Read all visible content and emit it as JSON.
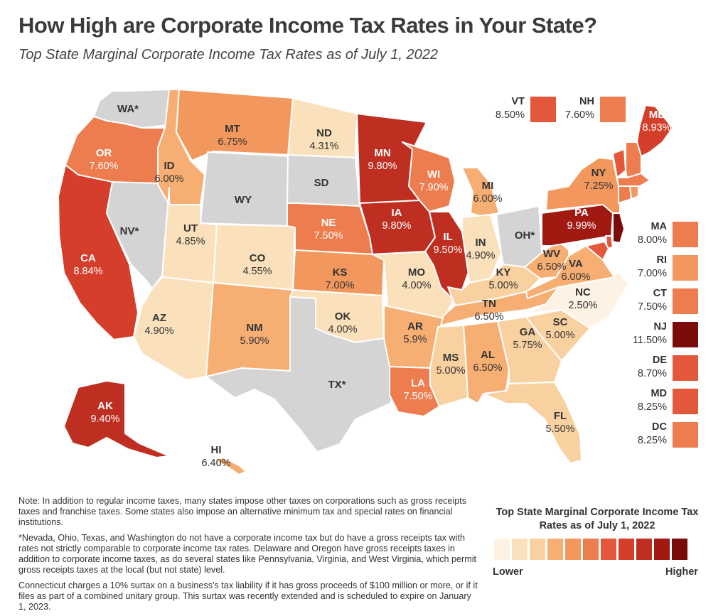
{
  "title": "How High are Corporate Income Tax Rates in Your State?",
  "subtitle": "Top State Marginal Corporate Income Tax Rates as of July 1, 2022",
  "colors": {
    "none": "#d4d4d4",
    "c1": "#fdf2e3",
    "c2": "#fbe0bc",
    "c3": "#f9d1a0",
    "c4": "#f6ae72",
    "c5": "#f2985e",
    "c6": "#ed7c4e",
    "c7": "#e3573b",
    "c8": "#d43e2a",
    "c9": "#be2f22",
    "c10": "#a01a12",
    "c11": "#7a0d0b"
  },
  "states": {
    "WA": {
      "code": "WA*",
      "rate": "",
      "color": "none"
    },
    "OR": {
      "code": "OR",
      "rate": "7.60%",
      "color": "c6"
    },
    "CA": {
      "code": "CA",
      "rate": "8.84%",
      "color": "c8"
    },
    "NV": {
      "code": "NV*",
      "rate": "",
      "color": "none"
    },
    "ID": {
      "code": "ID",
      "rate": "6.00%",
      "color": "c4"
    },
    "MT": {
      "code": "MT",
      "rate": "6.75%",
      "color": "c5"
    },
    "WY": {
      "code": "WY",
      "rate": "",
      "color": "none"
    },
    "UT": {
      "code": "UT",
      "rate": "4.85%",
      "color": "c2"
    },
    "AZ": {
      "code": "AZ",
      "rate": "4.90%",
      "color": "c2"
    },
    "CO": {
      "code": "CO",
      "rate": "4.55%",
      "color": "c2"
    },
    "NM": {
      "code": "NM",
      "rate": "5.90%",
      "color": "c4"
    },
    "ND": {
      "code": "ND",
      "rate": "4.31%",
      "color": "c2"
    },
    "SD": {
      "code": "SD",
      "rate": "",
      "color": "none"
    },
    "NE": {
      "code": "NE",
      "rate": "7.50%",
      "color": "c6"
    },
    "KS": {
      "code": "KS",
      "rate": "7.00%",
      "color": "c5"
    },
    "OK": {
      "code": "OK",
      "rate": "4.00%",
      "color": "c2"
    },
    "TX": {
      "code": "TX*",
      "rate": "",
      "color": "none"
    },
    "MN": {
      "code": "MN",
      "rate": "9.80%",
      "color": "c9"
    },
    "IA": {
      "code": "IA",
      "rate": "9.80%",
      "color": "c9"
    },
    "MO": {
      "code": "MO",
      "rate": "4.00%",
      "color": "c2"
    },
    "AR": {
      "code": "AR",
      "rate": "5.9%",
      "color": "c4"
    },
    "LA": {
      "code": "LA",
      "rate": "7.50%",
      "color": "c6"
    },
    "WI": {
      "code": "WI",
      "rate": "7.90%",
      "color": "c6"
    },
    "IL": {
      "code": "IL",
      "rate": "9.50%",
      "color": "c9"
    },
    "MI": {
      "code": "MI",
      "rate": "6.00%",
      "color": "c4"
    },
    "IN": {
      "code": "IN",
      "rate": "4.90%",
      "color": "c2"
    },
    "OH": {
      "code": "OH*",
      "rate": "",
      "color": "none"
    },
    "KY": {
      "code": "KY",
      "rate": "5.00%",
      "color": "c3"
    },
    "TN": {
      "code": "TN",
      "rate": "6.50%",
      "color": "c4"
    },
    "MS": {
      "code": "MS",
      "rate": "5.00%",
      "color": "c3"
    },
    "AL": {
      "code": "AL",
      "rate": "6.50%",
      "color": "c4"
    },
    "GA": {
      "code": "GA",
      "rate": "5.75%",
      "color": "c3"
    },
    "FL": {
      "code": "FL",
      "rate": "5.50%",
      "color": "c3"
    },
    "SC": {
      "code": "SC",
      "rate": "5.00%",
      "color": "c3"
    },
    "NC": {
      "code": "NC",
      "rate": "2.50%",
      "color": "c1"
    },
    "VA": {
      "code": "VA",
      "rate": "6.00%",
      "color": "c4"
    },
    "WV": {
      "code": "WV",
      "rate": "6.50%",
      "color": "c4"
    },
    "PA": {
      "code": "PA",
      "rate": "9.99%",
      "color": "c10"
    },
    "NY": {
      "code": "NY",
      "rate": "7.25%",
      "color": "c5"
    },
    "ME": {
      "code": "ME",
      "rate": "8.93%",
      "color": "c8"
    },
    "AK": {
      "code": "AK",
      "rate": "9.40%",
      "color": "c9"
    },
    "HI": {
      "code": "HI",
      "rate": "6.40%",
      "color": "c4"
    }
  },
  "small_states": {
    "VT": {
      "code": "VT",
      "rate": "8.50%",
      "color": "c7"
    },
    "NH": {
      "code": "NH",
      "rate": "7.60%",
      "color": "c6"
    },
    "MA": {
      "code": "MA",
      "rate": "8.00%",
      "color": "c6"
    },
    "RI": {
      "code": "RI",
      "rate": "7.00%",
      "color": "c5"
    },
    "CT": {
      "code": "CT",
      "rate": "7.50%",
      "color": "c6"
    },
    "NJ": {
      "code": "NJ",
      "rate": "11.50%",
      "color": "c11"
    },
    "DE": {
      "code": "DE",
      "rate": "8.70%",
      "color": "c7"
    },
    "MD": {
      "code": "MD",
      "rate": "8.25%",
      "color": "c7"
    },
    "DC": {
      "code": "DC",
      "rate": "8.25%",
      "color": "c6"
    }
  },
  "notes": {
    "note1": "Note: In addition to regular income taxes, many states impose other taxes on corporations such as gross receipts taxes and franchise taxes. Some states also impose an alternative minimum tax and special rates on financial institutions.",
    "note2": "*Nevada, Ohio, Texas, and Washington do not have a corporate income tax but do have a gross receipts tax with rates not strictly comparable to corporate income tax rates. Delaware and Oregon have gross receipts taxes in addition to corporate income taxes, as do several states like Pennsylvania, Virginia, and West Virginia, which permit gross receipts taxes at the local (but not state) level.",
    "note3": "Connecticut charges a 10% surtax on a business's tax liability if it has gross proceeds of $100 million or more, or if it files as part of a combined unitary group. This surtax was recently extended and is scheduled to expire on January 1, 2023."
  },
  "legend": {
    "title": "Top State Marginal Corporate Income Tax Rates as of July 1, 2022",
    "low_label": "Lower",
    "high_label": "Higher",
    "scale": [
      "c1",
      "c2",
      "c3",
      "c4",
      "c5",
      "c6",
      "c7",
      "c8",
      "c9",
      "c10",
      "c11"
    ]
  }
}
